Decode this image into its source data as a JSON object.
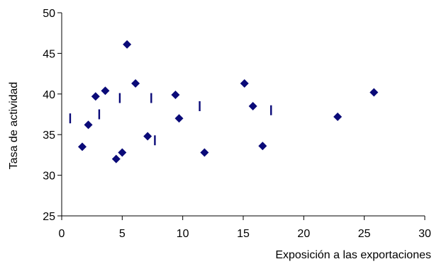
{
  "chart_data": {
    "type": "scatter",
    "title": "",
    "xlabel": "Exposición a las exportaciones",
    "ylabel": "Tasa de actividad",
    "xlim": [
      0,
      30
    ],
    "ylim": [
      25,
      50
    ],
    "xticks": [
      0,
      5,
      10,
      15,
      20,
      25,
      30
    ],
    "yticks": [
      25,
      30,
      35,
      40,
      45,
      50
    ],
    "xtick_labels": [
      "0",
      "5",
      "10",
      "15",
      "20",
      "25",
      "30"
    ],
    "ytick_labels": [
      "25",
      "30",
      "35",
      "40",
      "45",
      "50"
    ],
    "grid": false,
    "legend": "none",
    "series": [
      {
        "marker": "diamond",
        "color": "#0a0a78",
        "points": [
          {
            "x": 1.7,
            "y": 33.5
          },
          {
            "x": 2.2,
            "y": 36.2
          },
          {
            "x": 2.8,
            "y": 39.7
          },
          {
            "x": 3.6,
            "y": 40.4
          },
          {
            "x": 4.5,
            "y": 32.0
          },
          {
            "x": 5.0,
            "y": 32.8
          },
          {
            "x": 5.4,
            "y": 46.1
          },
          {
            "x": 6.1,
            "y": 41.3
          },
          {
            "x": 7.1,
            "y": 34.8
          },
          {
            "x": 9.4,
            "y": 39.9
          },
          {
            "x": 9.7,
            "y": 37.0
          },
          {
            "x": 11.8,
            "y": 32.8
          },
          {
            "x": 15.1,
            "y": 41.3
          },
          {
            "x": 15.8,
            "y": 38.5
          },
          {
            "x": 16.6,
            "y": 33.6
          },
          {
            "x": 22.8,
            "y": 37.2
          },
          {
            "x": 25.8,
            "y": 40.2
          }
        ]
      },
      {
        "marker": "dash",
        "color": "#0a0a78",
        "points": [
          {
            "x": 0.7,
            "y": 37.0
          },
          {
            "x": 3.1,
            "y": 37.5
          },
          {
            "x": 4.8,
            "y": 39.5
          },
          {
            "x": 7.4,
            "y": 39.5
          },
          {
            "x": 7.7,
            "y": 34.3
          },
          {
            "x": 11.4,
            "y": 38.5
          },
          {
            "x": 17.3,
            "y": 38.0
          }
        ]
      }
    ]
  }
}
